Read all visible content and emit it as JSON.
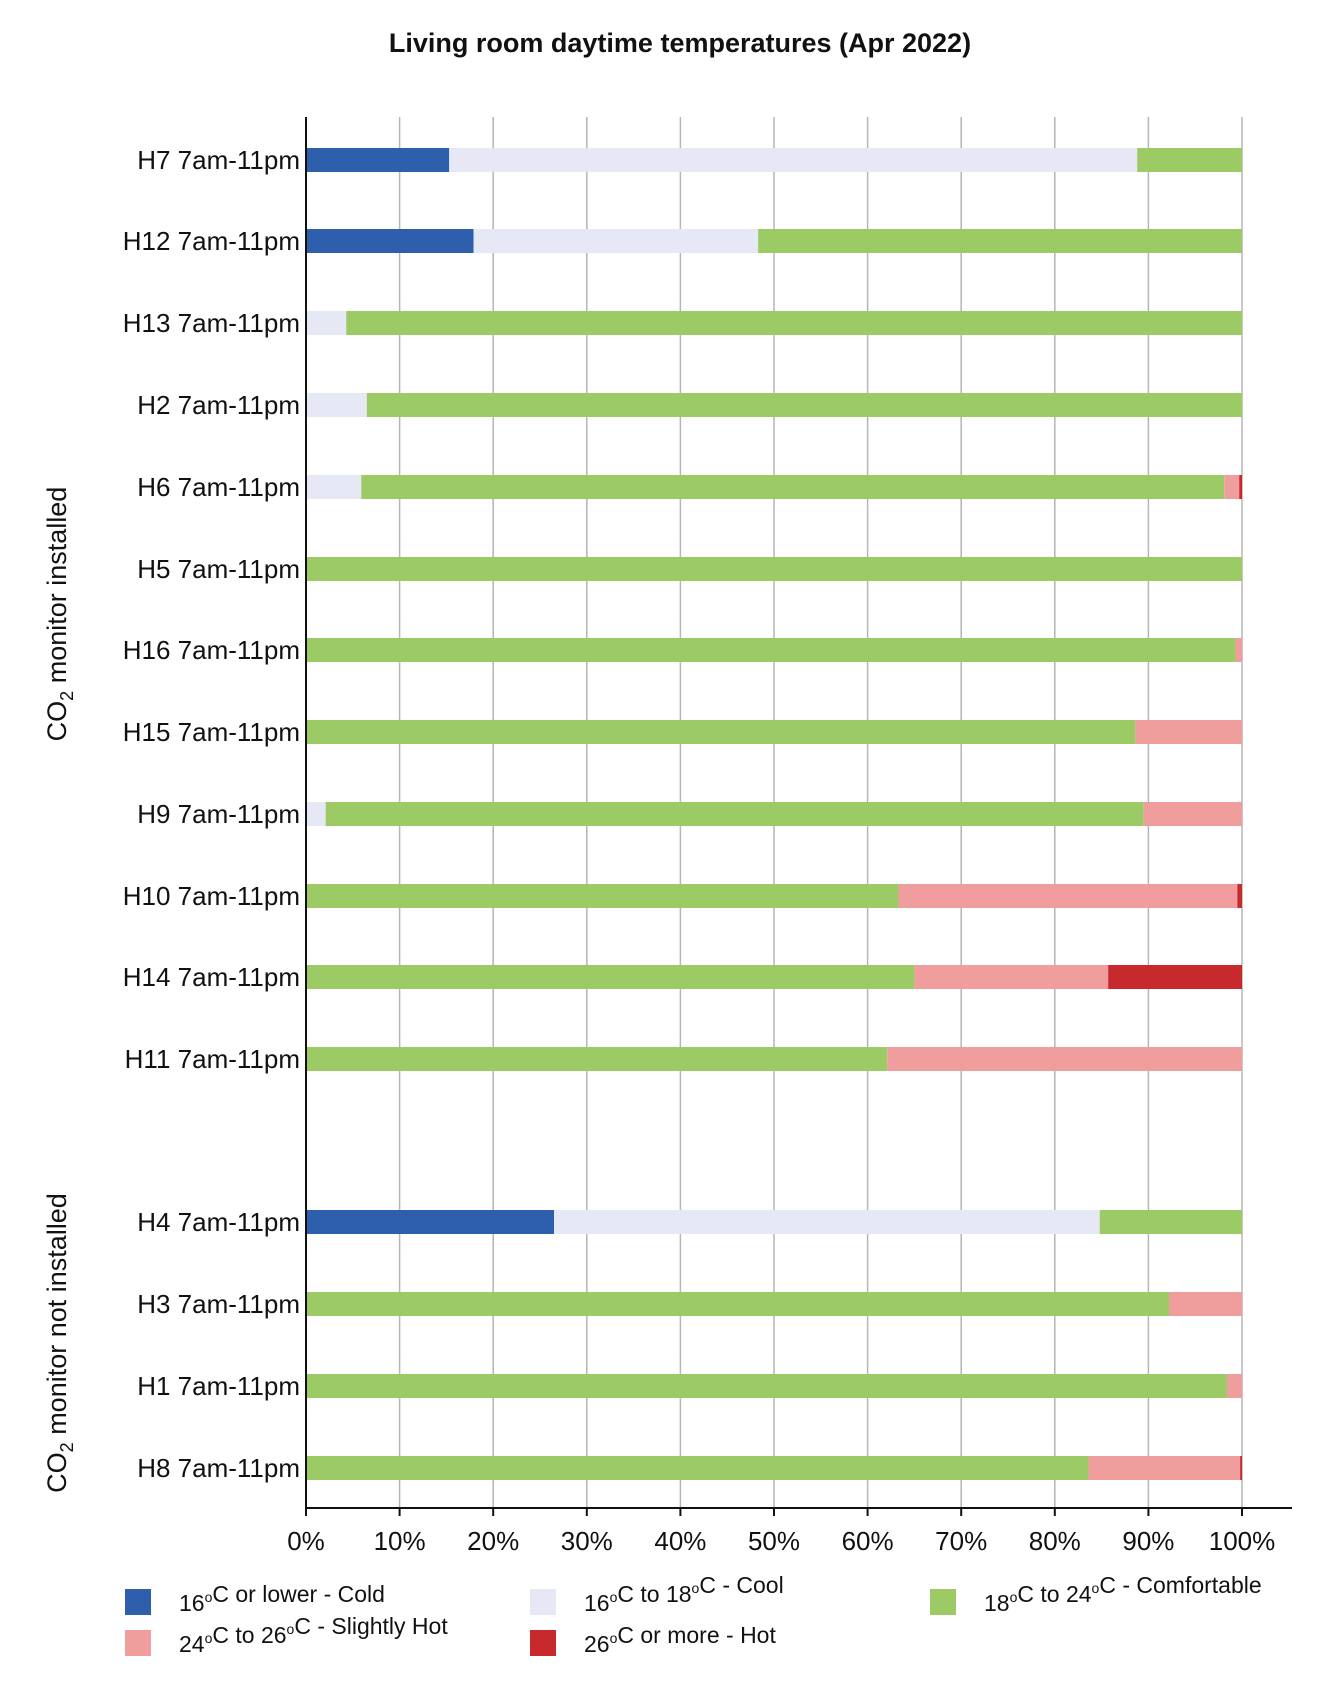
{
  "chart_data": {
    "type": "bar",
    "orientation": "horizontal",
    "stacked": true,
    "title": "Living room daytime temperatures (Apr 2022)",
    "xlim": [
      0,
      100
    ],
    "x_ticks": [
      "0%",
      "10%",
      "20%",
      "30%",
      "40%",
      "50%",
      "60%",
      "70%",
      "80%",
      "90%",
      "100%"
    ],
    "grid": "vertical",
    "legend_position": "bottom",
    "groups": [
      {
        "label_parts": [
          "CO",
          "2",
          " monitor installed"
        ],
        "categories": [
          "H7 7am-11pm",
          "H12 7am-11pm",
          "H13 7am-11pm",
          "H2 7am-11pm",
          "H6 7am-11pm",
          "H5 7am-11pm",
          "H16 7am-11pm",
          "H15 7am-11pm",
          "H9 7am-11pm",
          "H10 7am-11pm",
          "H14 7am-11pm",
          "H11 7am-11pm"
        ]
      },
      {
        "label_parts": [
          "CO",
          "2",
          " monitor not installed"
        ],
        "categories": [
          "H4 7am-11pm",
          "H3 7am-11pm",
          "H1 7am-11pm",
          "H8 7am-11pm"
        ]
      }
    ],
    "series": [
      {
        "name_parts": [
          "16",
          "o",
          "C or lower - Cold"
        ],
        "color": "#2e5fac",
        "values": [
          15.3,
          17.9,
          0,
          0,
          0,
          0,
          0,
          0,
          0,
          0,
          0,
          0,
          26.5,
          0,
          0,
          0
        ]
      },
      {
        "name_parts": [
          "16",
          "o",
          "C to 18",
          "o",
          "C - Cool"
        ],
        "color": "#e6e8f5",
        "values": [
          73.5,
          30.4,
          4.3,
          6.5,
          5.9,
          0,
          0,
          0,
          2.1,
          0,
          0,
          0,
          58.3,
          0,
          0,
          0
        ]
      },
      {
        "name_parts": [
          "18",
          "o",
          "C to 24",
          "o",
          "C - Comfortable"
        ],
        "color": "#9ccb66",
        "values": [
          11.2,
          51.7,
          95.7,
          93.5,
          92.2,
          100,
          99.3,
          88.6,
          87.4,
          63.3,
          65.0,
          62.1,
          15.2,
          92.2,
          98.4,
          83.6
        ]
      },
      {
        "name_parts": [
          "24",
          "o",
          "C to 26",
          "o",
          "C - Slightly Hot"
        ],
        "color": "#ef9d9d",
        "values": [
          0,
          0,
          0,
          0,
          1.6,
          0,
          0.7,
          11.4,
          10.5,
          36.2,
          20.7,
          37.9,
          0,
          7.8,
          1.6,
          16.2
        ]
      },
      {
        "name_parts": [
          "26",
          "o",
          "C or more - Hot"
        ],
        "color": "#c8292c",
        "values": [
          0,
          0,
          0,
          0,
          0.3,
          0,
          0,
          0,
          0,
          0.5,
          14.3,
          0,
          0,
          0,
          0,
          0.2
        ]
      }
    ]
  }
}
